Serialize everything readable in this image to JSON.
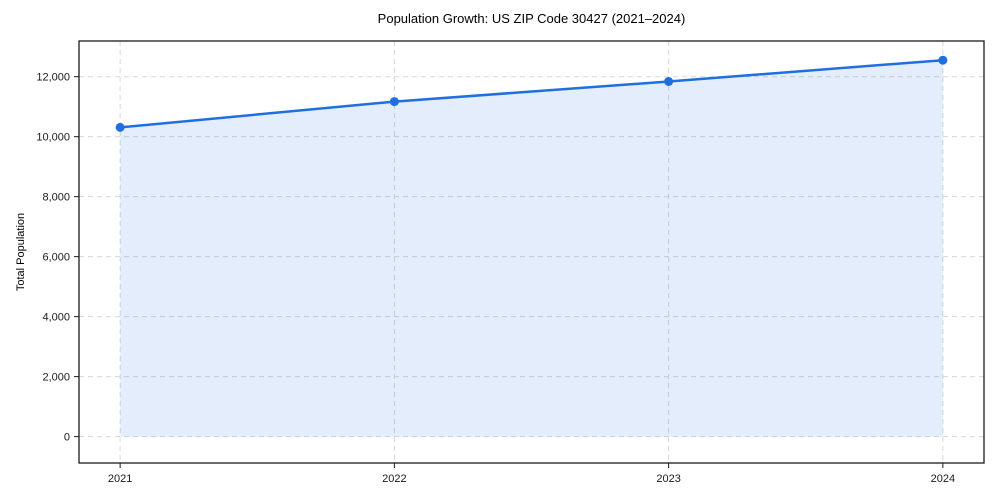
{
  "chart_data": {
    "type": "line",
    "title": "Population Growth: US ZIP Code 30427 (2021–2024)",
    "xlabel": "",
    "ylabel": "Total Population",
    "x": [
      2021,
      2022,
      2023,
      2024
    ],
    "series": [
      {
        "name": "Total Population",
        "values": [
          10310,
          11170,
          11840,
          12550
        ]
      }
    ],
    "x_tick_labels": [
      "2021",
      "2022",
      "2023",
      "2024"
    ],
    "y_ticks": [
      0,
      2000,
      4000,
      6000,
      8000,
      10000,
      12000
    ],
    "y_tick_labels": [
      "0",
      "2,000",
      "4,000",
      "6,000",
      "8,000",
      "10,000",
      "12,000"
    ],
    "xlim": [
      2020.85,
      2024.15
    ],
    "ylim": [
      -880,
      13190
    ],
    "area_fill_baseline": 0,
    "grid": true,
    "legend": false,
    "marker": "circle",
    "colors": {
      "line": "#1f6fe0",
      "marker": "#1f6fe0",
      "fill": "rgba(31, 111, 224, 0.12)",
      "grid": "#d8d8d8",
      "spine": "#1a1a1a",
      "tick_text": "#1a1a1a",
      "background": "#ffffff"
    }
  }
}
